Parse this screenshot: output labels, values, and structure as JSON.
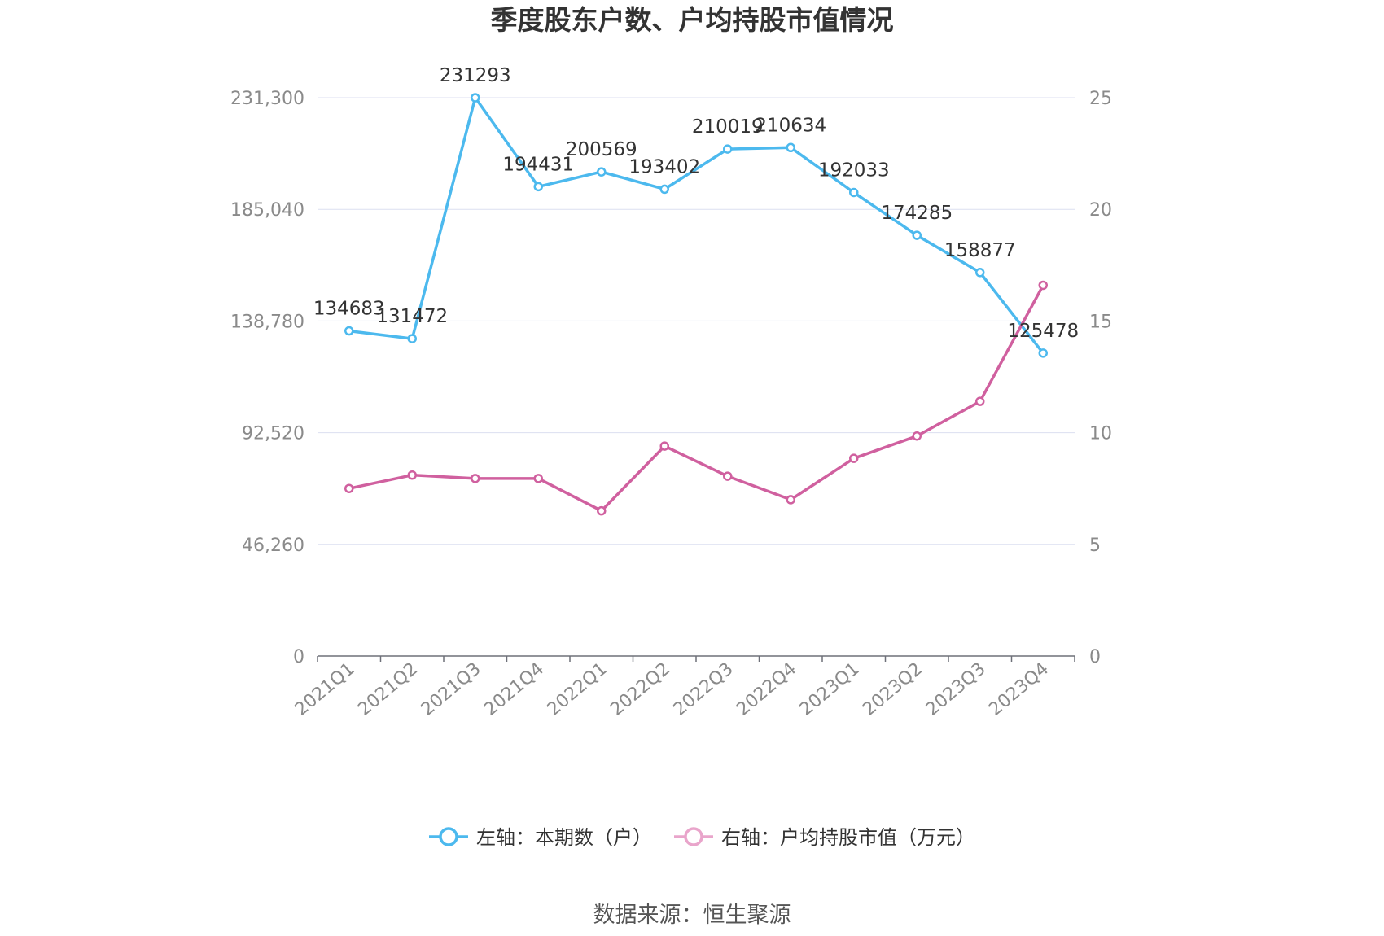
{
  "chart_data": {
    "type": "line",
    "title": "季度股东户数、户均持股市值情况",
    "categories": [
      "2021Q1",
      "2021Q2",
      "2021Q3",
      "2021Q4",
      "2022Q1",
      "2022Q2",
      "2022Q3",
      "2022Q4",
      "2023Q1",
      "2023Q2",
      "2023Q3",
      "2023Q4"
    ],
    "left_axis": {
      "ylim": [
        0,
        231300
      ],
      "ticks": [
        0,
        46260,
        92520,
        138780,
        185040,
        231300
      ],
      "tick_labels": [
        "0",
        "46,260",
        "92,520",
        "138,780",
        "185,040",
        "231,300"
      ]
    },
    "right_axis": {
      "ylim": [
        0,
        25
      ],
      "ticks": [
        0,
        5,
        10,
        15,
        20,
        25
      ],
      "tick_labels": [
        "0",
        "5",
        "10",
        "15",
        "20",
        "25"
      ]
    },
    "series": [
      {
        "name": "左轴：本期数（户）",
        "axis": "left",
        "color": "#4cb9ee",
        "values": [
          134683,
          131472,
          231293,
          194431,
          200569,
          193402,
          210019,
          210634,
          192033,
          174285,
          158877,
          125478
        ],
        "labels": [
          "134683",
          "131472",
          "231293",
          "194431",
          "200569",
          "193402",
          "210019",
          "210634",
          "192033",
          "174285",
          "158877",
          "125478"
        ]
      },
      {
        "name": "右轴：户均持股市值（万元）",
        "axis": "right",
        "color": "#d0609f",
        "values": [
          7.5,
          8.1,
          7.95,
          7.95,
          6.5,
          9.4,
          8.05,
          7.0,
          8.85,
          9.85,
          11.4,
          16.6
        ]
      }
    ],
    "grid": true,
    "legend_position": "bottom-center"
  },
  "footer": {
    "source": "数据来源：恒生聚源"
  }
}
